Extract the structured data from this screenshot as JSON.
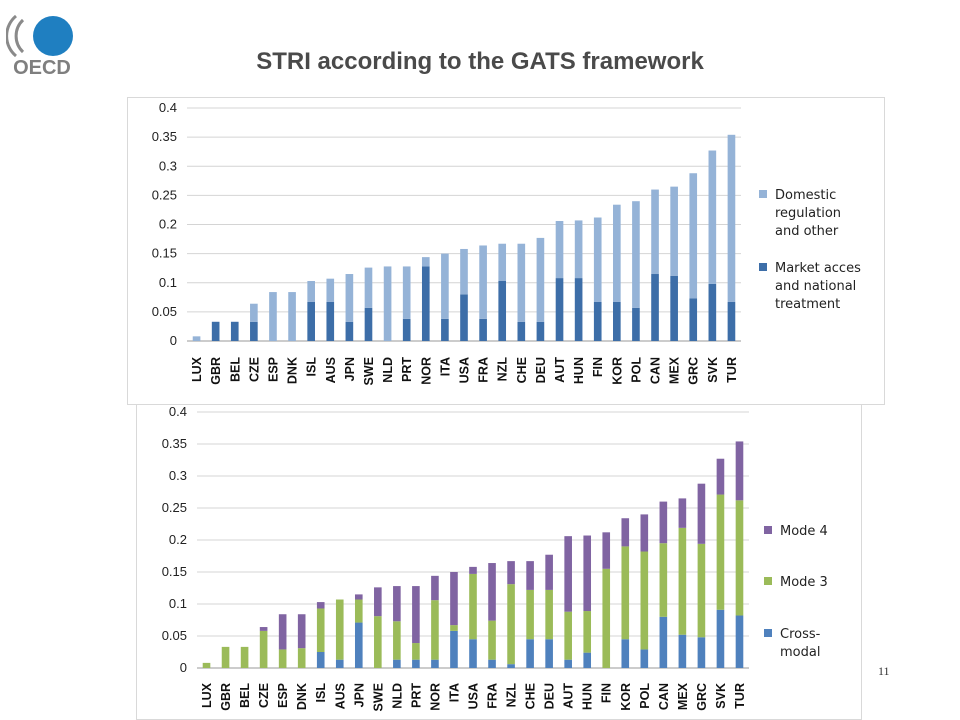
{
  "slide": {
    "title": "STRI according to the GATS framework",
    "page_number": "11",
    "logo_text": "OECD"
  },
  "colors": {
    "title": "#4a4a4a",
    "oecd_blue": "#1f7fc1",
    "oecd_gray": "#7f7f7f"
  },
  "chart_data": [
    {
      "type": "bar",
      "stacked": true,
      "categories": [
        "LUX",
        "GBR",
        "BEL",
        "CZE",
        "ESP",
        "DNK",
        "ISL",
        "AUS",
        "JPN",
        "SWE",
        "NLD",
        "PRT",
        "NOR",
        "ITA",
        "USA",
        "FRA",
        "NZL",
        "CHE",
        "DEU",
        "AUT",
        "HUN",
        "FIN",
        "KOR",
        "POL",
        "CAN",
        "MEX",
        "GRC",
        "SVK",
        "TUR"
      ],
      "series": [
        {
          "name": "Market acces and national treatment",
          "color": "#3d6ea8",
          "values": [
            0,
            0.033,
            0.033,
            0.033,
            0,
            0,
            0.067,
            0.067,
            0.033,
            0.057,
            0,
            0.038,
            0.128,
            0.038,
            0.08,
            0.038,
            0.103,
            0.033,
            0.033,
            0.108,
            0.108,
            0.067,
            0.067,
            0.057,
            0.115,
            0.112,
            0.073,
            0.098,
            0.067
          ]
        },
        {
          "name": "Domestic regulation and other",
          "color": "#95b3d7",
          "values": [
            0.008,
            0,
            0,
            0.031,
            0.084,
            0.084,
            0.036,
            0.04,
            0.082,
            0.069,
            0.128,
            0.09,
            0.016,
            0.112,
            0.078,
            0.126,
            0.064,
            0.134,
            0.144,
            0.098,
            0.099,
            0.145,
            0.167,
            0.183,
            0.145,
            0.153,
            0.215,
            0.229,
            0.287
          ]
        }
      ],
      "legend": [
        "Domestic regulation and other",
        "Market acces and national treatment"
      ],
      "legend_lines": [
        [
          "Domestic",
          "regulation",
          "and other"
        ],
        [
          "Market acces",
          "and national",
          "treatment"
        ]
      ],
      "yticks": [
        "0",
        "0.05",
        "0.1",
        "0.15",
        "0.2",
        "0.25",
        "0.3",
        "0.35",
        "0.4"
      ],
      "ylim": [
        0,
        0.4
      ],
      "grid": true,
      "legend_position": "right"
    },
    {
      "type": "bar",
      "stacked": true,
      "categories": [
        "LUX",
        "GBR",
        "BEL",
        "CZE",
        "ESP",
        "DNK",
        "ISL",
        "AUS",
        "JPN",
        "SWE",
        "NLD",
        "PRT",
        "NOR",
        "ITA",
        "USA",
        "FRA",
        "NZL",
        "CHE",
        "DEU",
        "AUT",
        "HUN",
        "FIN",
        "KOR",
        "POL",
        "CAN",
        "MEX",
        "GRC",
        "SVK",
        "TUR"
      ],
      "series": [
        {
          "name": "Cross-modal",
          "color": "#4f81bd",
          "values": [
            0,
            0,
            0,
            0,
            0,
            0,
            0.025,
            0.013,
            0.071,
            0,
            0.013,
            0.013,
            0.013,
            0.058,
            0.045,
            0.013,
            0.006,
            0.045,
            0.045,
            0.013,
            0.024,
            0,
            0.045,
            0.029,
            0.08,
            0.052,
            0.048,
            0.091,
            0.082
          ]
        },
        {
          "name": "Mode 3",
          "color": "#9bbb59",
          "values": [
            0.008,
            0.033,
            0.033,
            0.058,
            0.029,
            0.031,
            0.068,
            0.094,
            0.036,
            0.081,
            0.06,
            0.026,
            0.093,
            0.009,
            0.102,
            0.061,
            0.125,
            0.077,
            0.077,
            0.075,
            0.065,
            0.155,
            0.145,
            0.153,
            0.115,
            0.167,
            0.146,
            0.18,
            0.18
          ]
        },
        {
          "name": "Mode 4",
          "color": "#8064a2",
          "values": [
            0,
            0,
            0,
            0.006,
            0.055,
            0.053,
            0.01,
            0,
            0.008,
            0.045,
            0.055,
            0.089,
            0.038,
            0.083,
            0.011,
            0.09,
            0.036,
            0.045,
            0.055,
            0.118,
            0.118,
            0.057,
            0.044,
            0.058,
            0.065,
            0.046,
            0.094,
            0.056,
            0.092
          ]
        }
      ],
      "legend": [
        "Mode 4",
        "Mode 3",
        "Cross-modal"
      ],
      "legend_lines": [
        [
          "Mode 4"
        ],
        [
          "Mode 3"
        ],
        [
          "Cross-",
          "modal"
        ]
      ],
      "yticks": [
        "0",
        "0.05",
        "0.1",
        "0.15",
        "0.2",
        "0.25",
        "0.3",
        "0.35",
        "0.4"
      ],
      "ylim": [
        0,
        0.4
      ],
      "grid": true,
      "legend_position": "right"
    }
  ]
}
